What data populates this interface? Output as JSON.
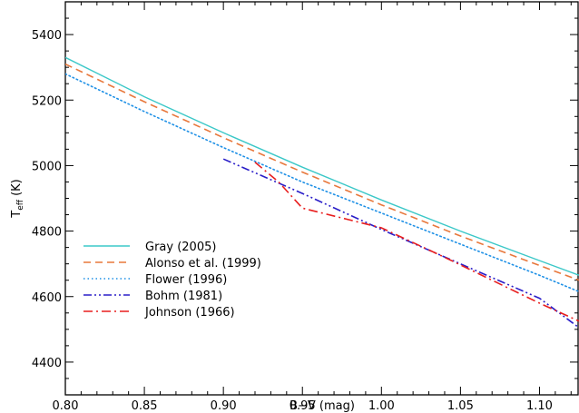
{
  "chart_data": {
    "type": "line",
    "xlabel": "B−V (mag)",
    "ylabel": {
      "main": "T",
      "sub": "eff",
      "unit": " (K)"
    },
    "xlim": [
      0.8,
      1.125
    ],
    "ylim": [
      4300,
      5500
    ],
    "x_ticks": [
      "0.80",
      "0.85",
      "0.90",
      "0.95",
      "1.00",
      "1.05",
      "1.10"
    ],
    "y_ticks": [
      "4400",
      "4600",
      "4800",
      "5000",
      "5200",
      "5400"
    ],
    "grid": false,
    "legend_position": "lower-left",
    "series": [
      {
        "name": "Gray (2005)",
        "color": "#3cc8c8",
        "dash": "solid",
        "x": [
          0.8,
          0.85,
          0.9,
          0.95,
          1.0,
          1.05,
          1.1,
          1.125
        ],
        "y": [
          5330,
          5210,
          5100,
          4995,
          4895,
          4800,
          4710,
          4665
        ]
      },
      {
        "name": "Alonso et al. (1999)",
        "color": "#e8783c",
        "dash": "long-dash",
        "x": [
          0.8,
          0.85,
          0.9,
          0.95,
          1.0,
          1.05,
          1.1,
          1.125
        ],
        "y": [
          5310,
          5195,
          5085,
          4980,
          4880,
          4785,
          4695,
          4650
        ]
      },
      {
        "name": "Flower (1996)",
        "color": "#1e90e6",
        "dash": "dotted",
        "x": [
          0.8,
          0.85,
          0.9,
          0.95,
          1.0,
          1.05,
          1.1,
          1.125
        ],
        "y": [
          5280,
          5165,
          5055,
          4950,
          4855,
          4760,
          4665,
          4615
        ]
      },
      {
        "name": "Bohm (1981)",
        "color": "#2a1ec8",
        "dash": "dash-dot-dot",
        "x": [
          0.9,
          0.95,
          1.0,
          1.05,
          1.1,
          1.125
        ],
        "y": [
          5020,
          4915,
          4805,
          4700,
          4595,
          4505
        ]
      },
      {
        "name": "Johnson (1966)",
        "color": "#e81e1e",
        "dash": "dash-dot",
        "x": [
          0.92,
          0.935,
          0.95,
          1.0,
          1.04,
          1.1,
          1.125
        ],
        "y": [
          5010,
          4950,
          4870,
          4810,
          4720,
          4580,
          4525
        ]
      }
    ]
  }
}
